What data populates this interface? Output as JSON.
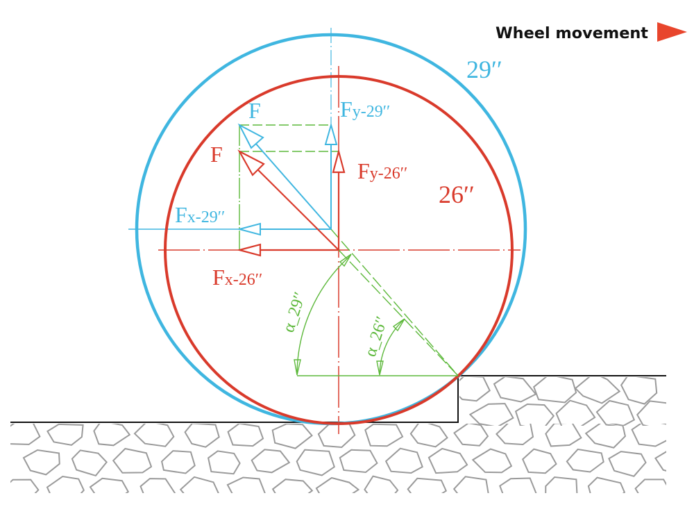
{
  "colors": {
    "red": "#d93a2b",
    "blue": "#3fb6e0",
    "green": "#5cb83a",
    "ground": "#111111",
    "stone": "#9a9a9a"
  },
  "legend": {
    "label": "Wheel movement",
    "icon": "right-triangle-arrow-icon"
  },
  "labels": {
    "wheel_29": "29′′",
    "wheel_26": "26′′",
    "force_29": "F",
    "force_26": "F",
    "fy_29_main": "F",
    "fy_29_sub": "y-29′′",
    "fy_26_main": "F",
    "fy_26_sub": "y-26′′",
    "fx_29_main": "F",
    "fx_29_sub": "x-29′′",
    "fx_26_main": "F",
    "fx_26_sub": "x-26′′",
    "alpha_29": "α_29′′",
    "alpha_26": "α_26′′"
  }
}
